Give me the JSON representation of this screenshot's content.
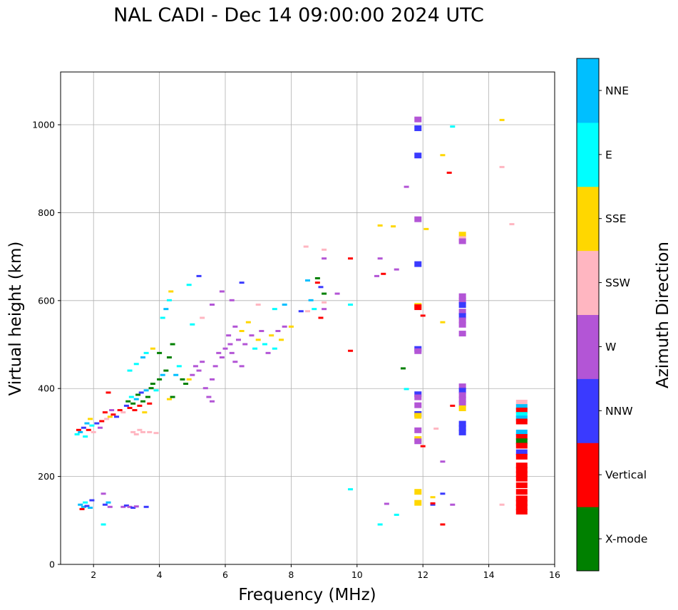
{
  "chart_data": {
    "type": "scatter",
    "title": "NAL CADI - Dec 14 09:00:00 2024 UTC",
    "xlabel": "Frequency (MHz)",
    "ylabel": "Virtual height (km)",
    "xlim": [
      1,
      16
    ],
    "ylim": [
      0,
      1120
    ],
    "xticks": [
      2,
      4,
      6,
      8,
      10,
      12,
      14,
      16
    ],
    "yticks": [
      0,
      200,
      400,
      600,
      800,
      1000
    ],
    "grid": true,
    "colorbar": {
      "label": "Azimuth Direction",
      "categories": [
        {
          "name": "X-mode",
          "color": "#008000"
        },
        {
          "name": "Vertical",
          "color": "#ff0000"
        },
        {
          "name": "NNW",
          "color": "#3a3aff"
        },
        {
          "name": "W",
          "color": "#b355d6"
        },
        {
          "name": "SSW",
          "color": "#ffb6c1"
        },
        {
          "name": "SSE",
          "color": "#ffd700"
        },
        {
          "name": "E",
          "color": "#00ffff"
        },
        {
          "name": "NNE",
          "color": "#00bfff"
        }
      ]
    },
    "points": [
      [
        1.6,
        135,
        "NNE"
      ],
      [
        1.7,
        130,
        "NNE"
      ],
      [
        1.75,
        140,
        "E"
      ],
      [
        1.8,
        132,
        "NNW"
      ],
      [
        1.9,
        128,
        "NNE"
      ],
      [
        1.95,
        145,
        "NNW"
      ],
      [
        1.65,
        125,
        "Vertical"
      ],
      [
        2.3,
        160,
        "W"
      ],
      [
        2.35,
        135,
        "NNW"
      ],
      [
        2.45,
        140,
        "NNE"
      ],
      [
        2.5,
        130,
        "W"
      ],
      [
        2.3,
        90,
        "E"
      ],
      [
        2.9,
        130,
        "W"
      ],
      [
        3.0,
        133,
        "NNW"
      ],
      [
        3.1,
        130,
        "W"
      ],
      [
        3.2,
        128,
        "NNW"
      ],
      [
        3.3,
        131,
        "W"
      ],
      [
        3.6,
        130,
        "NNW"
      ],
      [
        1.5,
        295,
        "E"
      ],
      [
        1.55,
        305,
        "Vertical"
      ],
      [
        1.6,
        300,
        "NNE"
      ],
      [
        1.7,
        310,
        "NNW"
      ],
      [
        1.75,
        290,
        "E"
      ],
      [
        1.8,
        320,
        "NNE"
      ],
      [
        1.85,
        305,
        "Vertical"
      ],
      [
        1.9,
        330,
        "SSE"
      ],
      [
        1.95,
        315,
        "E"
      ],
      [
        2.0,
        300,
        "SSW"
      ],
      [
        2.1,
        320,
        "NNW"
      ],
      [
        2.2,
        310,
        "W"
      ],
      [
        2.25,
        325,
        "Vertical"
      ],
      [
        2.35,
        345,
        "Vertical"
      ],
      [
        2.4,
        330,
        "SSW"
      ],
      [
        2.5,
        335,
        "SSE"
      ],
      [
        2.55,
        350,
        "W"
      ],
      [
        2.45,
        390,
        "Vertical"
      ],
      [
        2.6,
        340,
        "Vertical"
      ],
      [
        2.7,
        335,
        "NNW"
      ],
      [
        2.8,
        350,
        "Vertical"
      ],
      [
        2.9,
        345,
        "SSW"
      ],
      [
        3.0,
        360,
        "NNW"
      ],
      [
        3.05,
        370,
        "X-mode"
      ],
      [
        3.1,
        355,
        "Vertical"
      ],
      [
        3.15,
        380,
        "E"
      ],
      [
        3.2,
        365,
        "X-mode"
      ],
      [
        3.25,
        350,
        "Vertical"
      ],
      [
        3.3,
        375,
        "NNE"
      ],
      [
        3.35,
        385,
        "X-mode"
      ],
      [
        3.4,
        360,
        "Vertical"
      ],
      [
        3.45,
        390,
        "NNW"
      ],
      [
        3.5,
        370,
        "X-mode"
      ],
      [
        3.55,
        345,
        "SSE"
      ],
      [
        3.6,
        395,
        "NNE"
      ],
      [
        3.65,
        380,
        "X-mode"
      ],
      [
        3.7,
        365,
        "Vertical"
      ],
      [
        3.75,
        400,
        "X-mode"
      ],
      [
        3.8,
        410,
        "X-mode"
      ],
      [
        3.9,
        395,
        "E"
      ],
      [
        4.0,
        420,
        "X-mode"
      ],
      [
        4.1,
        430,
        "NNE"
      ],
      [
        3.2,
        300,
        "SSW"
      ],
      [
        3.3,
        295,
        "SSW"
      ],
      [
        3.4,
        305,
        "SSW"
      ],
      [
        3.5,
        300,
        "SSW"
      ],
      [
        3.7,
        300,
        "SSW"
      ],
      [
        3.9,
        298,
        "SSW"
      ],
      [
        3.1,
        440,
        "E"
      ],
      [
        3.3,
        455,
        "E"
      ],
      [
        3.5,
        470,
        "NNE"
      ],
      [
        3.6,
        480,
        "E"
      ],
      [
        3.8,
        490,
        "SSE"
      ],
      [
        4.0,
        480,
        "X-mode"
      ],
      [
        4.2,
        440,
        "X-mode"
      ],
      [
        4.3,
        470,
        "X-mode"
      ],
      [
        4.4,
        500,
        "X-mode"
      ],
      [
        4.5,
        430,
        "NNE"
      ],
      [
        4.6,
        450,
        "E"
      ],
      [
        4.7,
        420,
        "X-mode"
      ],
      [
        4.1,
        560,
        "E"
      ],
      [
        4.2,
        580,
        "NNE"
      ],
      [
        4.3,
        600,
        "E"
      ],
      [
        4.35,
        620,
        "SSE"
      ],
      [
        4.3,
        375,
        "SSE"
      ],
      [
        4.4,
        380,
        "X-mode"
      ],
      [
        4.8,
        410,
        "X-mode"
      ],
      [
        4.9,
        420,
        "SSE"
      ],
      [
        5.0,
        430,
        "W"
      ],
      [
        5.1,
        450,
        "W"
      ],
      [
        5.2,
        440,
        "W"
      ],
      [
        5.3,
        460,
        "W"
      ],
      [
        5.4,
        400,
        "W"
      ],
      [
        5.5,
        380,
        "W"
      ],
      [
        5.6,
        370,
        "W"
      ],
      [
        5.6,
        420,
        "W"
      ],
      [
        5.7,
        450,
        "W"
      ],
      [
        5.8,
        480,
        "W"
      ],
      [
        5.9,
        470,
        "W"
      ],
      [
        6.0,
        490,
        "W"
      ],
      [
        6.1,
        520,
        "W"
      ],
      [
        6.15,
        500,
        "W"
      ],
      [
        6.2,
        480,
        "W"
      ],
      [
        6.3,
        540,
        "W"
      ],
      [
        6.4,
        510,
        "W"
      ],
      [
        6.5,
        530,
        "SSE"
      ],
      [
        6.6,
        500,
        "W"
      ],
      [
        6.7,
        550,
        "SSE"
      ],
      [
        6.8,
        520,
        "W"
      ],
      [
        6.9,
        490,
        "E"
      ],
      [
        7.0,
        510,
        "SSE"
      ],
      [
        7.1,
        530,
        "W"
      ],
      [
        7.2,
        500,
        "E"
      ],
      [
        7.3,
        480,
        "W"
      ],
      [
        7.4,
        520,
        "SSE"
      ],
      [
        7.5,
        490,
        "E"
      ],
      [
        7.6,
        530,
        "W"
      ],
      [
        7.7,
        510,
        "SSE"
      ],
      [
        7.8,
        540,
        "W"
      ],
      [
        8.0,
        540,
        "SSE"
      ],
      [
        6.3,
        460,
        "W"
      ],
      [
        6.5,
        450,
        "W"
      ],
      [
        5.0,
        545,
        "E"
      ],
      [
        5.3,
        560,
        "SSW"
      ],
      [
        5.6,
        590,
        "W"
      ],
      [
        5.9,
        620,
        "W"
      ],
      [
        6.2,
        600,
        "W"
      ],
      [
        6.5,
        640,
        "NNW"
      ],
      [
        4.9,
        635,
        "E"
      ],
      [
        5.2,
        655,
        "NNW"
      ],
      [
        7.0,
        590,
        "SSW"
      ],
      [
        7.5,
        580,
        "E"
      ],
      [
        7.8,
        590,
        "NNE"
      ],
      [
        8.3,
        575,
        "NNW"
      ],
      [
        8.5,
        575,
        "SSW"
      ],
      [
        8.6,
        600,
        "NNE"
      ],
      [
        8.7,
        580,
        "E"
      ],
      [
        8.8,
        650,
        "X-mode"
      ],
      [
        8.8,
        640,
        "Vertical"
      ],
      [
        8.9,
        630,
        "NNW"
      ],
      [
        9.0,
        615,
        "X-mode"
      ],
      [
        9.0,
        595,
        "SSW"
      ],
      [
        8.9,
        560,
        "Vertical"
      ],
      [
        9.0,
        580,
        "W"
      ],
      [
        8.5,
        645,
        "NNE"
      ],
      [
        8.45,
        722,
        "SSW"
      ],
      [
        9.0,
        715,
        "SSW"
      ],
      [
        9.0,
        695,
        "W"
      ],
      [
        9.4,
        615,
        "W"
      ],
      [
        9.8,
        590,
        "E"
      ],
      [
        9.8,
        485,
        "Vertical"
      ],
      [
        9.8,
        695,
        "Vertical"
      ],
      [
        9.8,
        170,
        "E"
      ],
      [
        10.6,
        655,
        "W"
      ],
      [
        10.8,
        660,
        "Vertical"
      ],
      [
        10.7,
        695,
        "W"
      ],
      [
        11.2,
        670,
        "W"
      ],
      [
        10.7,
        770,
        "SSE"
      ],
      [
        11.1,
        768,
        "SSE"
      ],
      [
        11.4,
        445,
        "X-mode"
      ],
      [
        11.5,
        398,
        "E"
      ],
      [
        11.5,
        858,
        "W"
      ],
      [
        11.2,
        112,
        "E"
      ],
      [
        10.7,
        90,
        "E"
      ],
      [
        10.9,
        137,
        "W"
      ],
      [
        12.1,
        762,
        "SSE"
      ],
      [
        12.4,
        308,
        "SSW"
      ],
      [
        12.0,
        565,
        "Vertical"
      ],
      [
        12.0,
        268,
        "Vertical"
      ],
      [
        12.3,
        135,
        "NNW"
      ],
      [
        12.3,
        152,
        "SSE"
      ],
      [
        12.6,
        550,
        "SSE"
      ],
      [
        12.6,
        930,
        "SSE"
      ],
      [
        12.8,
        890,
        "Vertical"
      ],
      [
        12.6,
        233,
        "W"
      ],
      [
        12.6,
        160,
        "NNW"
      ],
      [
        12.6,
        90,
        "Vertical"
      ],
      [
        12.9,
        360,
        "Vertical"
      ],
      [
        12.9,
        135,
        "W"
      ],
      [
        12.9,
        995,
        "E"
      ],
      [
        12.3,
        138,
        "Vertical"
      ],
      [
        14.4,
        1010,
        "SSE"
      ],
      [
        14.4,
        903,
        "SSW"
      ],
      [
        14.7,
        773,
        "SSW"
      ],
      [
        14.4,
        135,
        "SSW"
      ]
    ],
    "columns": [
      {
        "x": 11.85,
        "cells": [
          [
            1012,
            "W"
          ],
          [
            992,
            "NNW"
          ],
          [
            930,
            "NNW"
          ],
          [
            785,
            "W"
          ],
          [
            683,
            "NNW"
          ],
          [
            588,
            "SSE"
          ],
          [
            585,
            "Vertical"
          ],
          [
            490,
            "NNW"
          ],
          [
            485,
            "W"
          ],
          [
            387,
            "NNW"
          ],
          [
            380,
            "W"
          ],
          [
            362,
            "W"
          ],
          [
            342,
            "NNW"
          ],
          [
            338,
            "SSE"
          ],
          [
            305,
            "W"
          ],
          [
            285,
            "SSE"
          ],
          [
            280,
            "W"
          ],
          [
            165,
            "SSE"
          ],
          [
            140,
            "SSE"
          ]
        ]
      },
      {
        "x": 13.2,
        "cells": [
          [
            750,
            "SSE"
          ],
          [
            740,
            "SSW"
          ],
          [
            735,
            "W"
          ],
          [
            610,
            "W"
          ],
          [
            600,
            "W"
          ],
          [
            590,
            "NNW"
          ],
          [
            575,
            "W"
          ],
          [
            565,
            "NNW"
          ],
          [
            555,
            "W"
          ],
          [
            545,
            "W"
          ],
          [
            525,
            "W"
          ],
          [
            405,
            "W"
          ],
          [
            395,
            "NNW"
          ],
          [
            385,
            "W"
          ],
          [
            375,
            "W"
          ],
          [
            365,
            "W"
          ],
          [
            355,
            "SSE"
          ],
          [
            320,
            "NNW"
          ],
          [
            310,
            "NNW"
          ],
          [
            300,
            "NNW"
          ]
        ]
      },
      {
        "x": 15.0,
        "cells": [
          [
            368,
            "SSW"
          ],
          [
            358,
            "NNE"
          ],
          [
            350,
            "Vertical"
          ],
          [
            340,
            "E"
          ],
          [
            332,
            "NNE"
          ],
          [
            325,
            "Vertical"
          ],
          [
            300,
            "NNE"
          ],
          [
            290,
            "Vertical"
          ],
          [
            280,
            "X-mode"
          ],
          [
            270,
            "Vertical"
          ],
          [
            255,
            "NNW"
          ],
          [
            245,
            "Vertical"
          ],
          [
            225,
            "Vertical"
          ],
          [
            215,
            "Vertical"
          ],
          [
            205,
            "Vertical"
          ],
          [
            195,
            "Vertical"
          ],
          [
            180,
            "Vertical"
          ],
          [
            165,
            "Vertical"
          ],
          [
            150,
            "Vertical"
          ],
          [
            140,
            "Vertical"
          ],
          [
            130,
            "Vertical"
          ],
          [
            120,
            "Vertical"
          ]
        ]
      }
    ]
  }
}
